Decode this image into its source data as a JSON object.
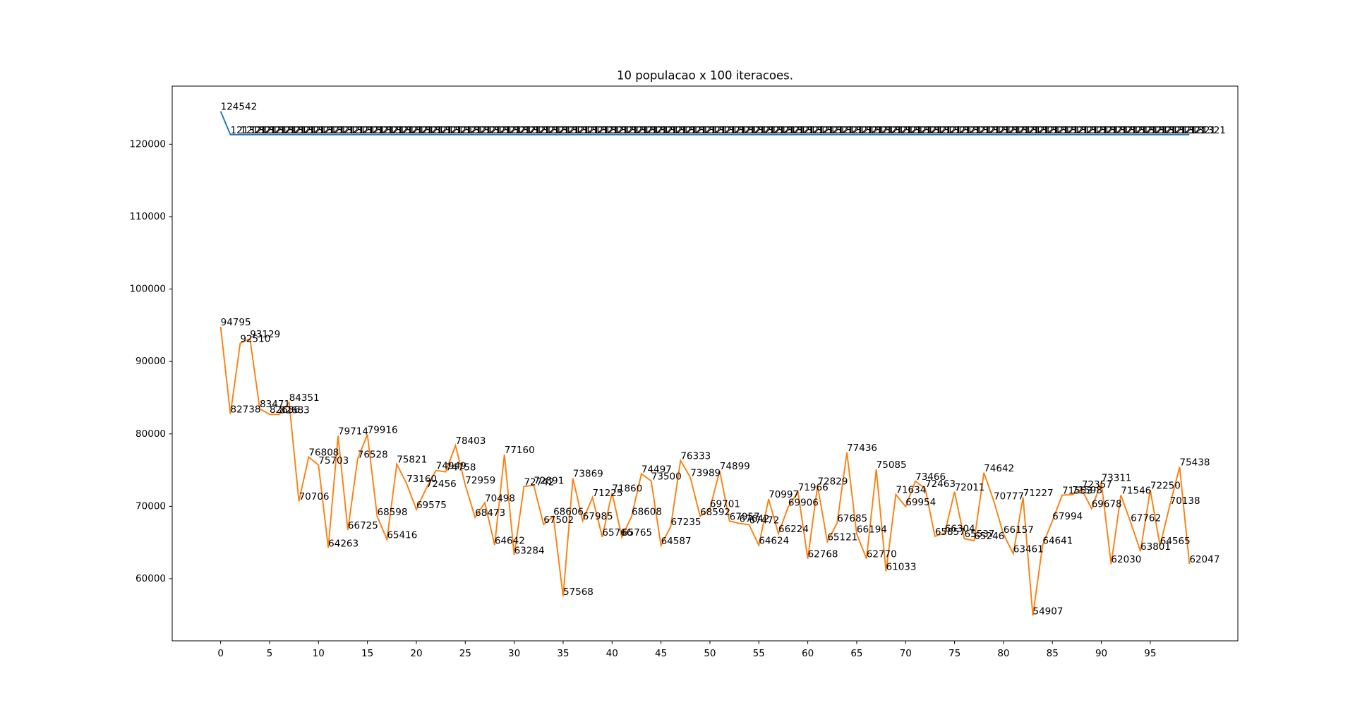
{
  "chart_data": {
    "type": "line",
    "title": "10 populacao x 100 iteracoes.",
    "x": [
      0,
      1,
      2,
      3,
      4,
      5,
      6,
      7,
      8,
      9,
      10,
      11,
      12,
      13,
      14,
      15,
      16,
      17,
      18,
      19,
      20,
      21,
      22,
      23,
      24,
      25,
      26,
      27,
      28,
      29,
      30,
      31,
      32,
      33,
      34,
      35,
      36,
      37,
      38,
      39,
      40,
      41,
      42,
      43,
      44,
      45,
      46,
      47,
      48,
      49,
      50,
      51,
      52,
      53,
      54,
      55,
      56,
      57,
      58,
      59,
      60,
      61,
      62,
      63,
      64,
      65,
      66,
      67,
      68,
      69,
      70,
      71,
      72,
      73,
      74,
      75,
      76,
      77,
      78,
      79,
      80,
      81,
      82,
      83,
      84,
      85,
      86,
      87,
      88,
      89,
      90,
      91,
      92,
      93,
      94,
      95,
      96,
      97,
      98,
      99
    ],
    "series": [
      {
        "color": "#1f77b4",
        "values": [
          124542,
          121321,
          121321,
          121321,
          121321,
          121321,
          121321,
          121321,
          121321,
          121321,
          121321,
          121321,
          121321,
          121321,
          121321,
          121321,
          121321,
          121321,
          121321,
          121321,
          121321,
          121321,
          121321,
          121321,
          121321,
          121321,
          121321,
          121321,
          121321,
          121321,
          121321,
          121321,
          121321,
          121321,
          121321,
          121321,
          121321,
          121321,
          121321,
          121321,
          121321,
          121321,
          121321,
          121321,
          121321,
          121321,
          121321,
          121321,
          121321,
          121321,
          121321,
          121321,
          121321,
          121321,
          121321,
          121321,
          121321,
          121321,
          121321,
          121321,
          121321,
          121321,
          121321,
          121321,
          121321,
          121321,
          121321,
          121321,
          121321,
          121321,
          121321,
          121321,
          121321,
          121321,
          121321,
          121321,
          121321,
          121321,
          121321,
          121321,
          121321,
          121321,
          121321,
          121321,
          121321,
          121321,
          121321,
          121321,
          121321,
          121321,
          121321,
          121321,
          121321,
          121321,
          121321,
          121321,
          121321,
          121321,
          121321,
          121321
        ]
      },
      {
        "color": "#ff7f0e",
        "values": [
          94795,
          82738,
          92510,
          93129,
          83471,
          82686,
          82683,
          84351,
          70706,
          76808,
          75703,
          64263,
          79714,
          66725,
          76528,
          79916,
          68598,
          65416,
          75821,
          73160,
          69575,
          72456,
          74949,
          74758,
          78403,
          72959,
          68473,
          70498,
          64642,
          77160,
          63284,
          72742,
          72891,
          67502,
          68606,
          57568,
          73869,
          67985,
          71225,
          65766,
          71860,
          65765,
          68608,
          74497,
          73500,
          64587,
          67235,
          76333,
          73989,
          68592,
          69701,
          74899,
          67957,
          67642,
          67472,
          64624,
          70997,
          66224,
          69906,
          71966,
          62768,
          72829,
          65121,
          67685,
          77436,
          66194,
          62770,
          75085,
          61033,
          71634,
          69954,
          73466,
          72463,
          65857,
          66304,
          72011,
          65537,
          65246,
          74642,
          70777,
          66157,
          63461,
          71227,
          54907,
          64641,
          67994,
          71553,
          71598,
          72357,
          69678,
          73311,
          62030,
          71546,
          67762,
          63801,
          72250,
          64565,
          70138,
          75438,
          62047
        ]
      }
    ],
    "xlim": [
      -4.95,
      103.95
    ],
    "ylim": [
      51425,
      128024
    ],
    "xticks": [
      0,
      5,
      10,
      15,
      20,
      25,
      30,
      35,
      40,
      45,
      50,
      55,
      60,
      65,
      70,
      75,
      80,
      85,
      90,
      95
    ],
    "yticks": [
      60000,
      70000,
      80000,
      90000,
      100000,
      110000,
      120000
    ]
  }
}
